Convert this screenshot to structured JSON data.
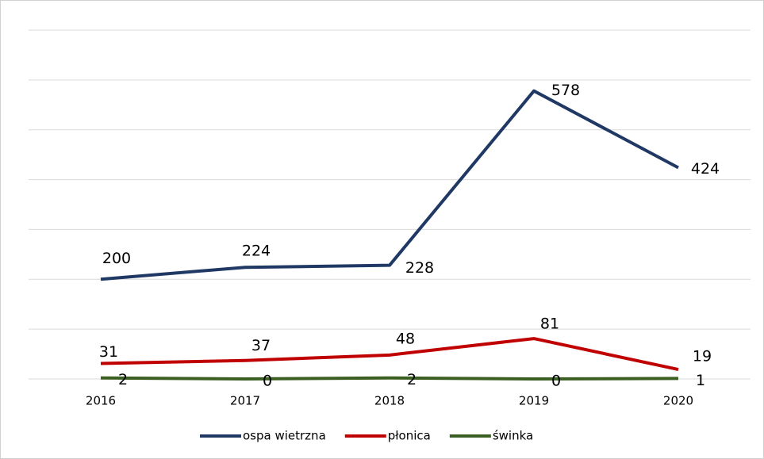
{
  "chart_data": {
    "type": "line",
    "categories": [
      "2016",
      "2017",
      "2018",
      "2019",
      "2020"
    ],
    "series": [
      {
        "name": "ospa wietrzna",
        "color": "#203864",
        "values": [
          200,
          224,
          228,
          578,
          424
        ]
      },
      {
        "name": "płonica",
        "color": "#c00000",
        "values": [
          31,
          37,
          48,
          81,
          19
        ]
      },
      {
        "name": "świnka",
        "color": "#3b5e23",
        "values": [
          2,
          0,
          2,
          0,
          1
        ]
      }
    ],
    "ylim": [
      0,
      700
    ],
    "yticks": [
      0,
      100,
      200,
      300,
      400,
      500,
      600,
      700
    ],
    "grid": true,
    "legend": "bottom"
  }
}
